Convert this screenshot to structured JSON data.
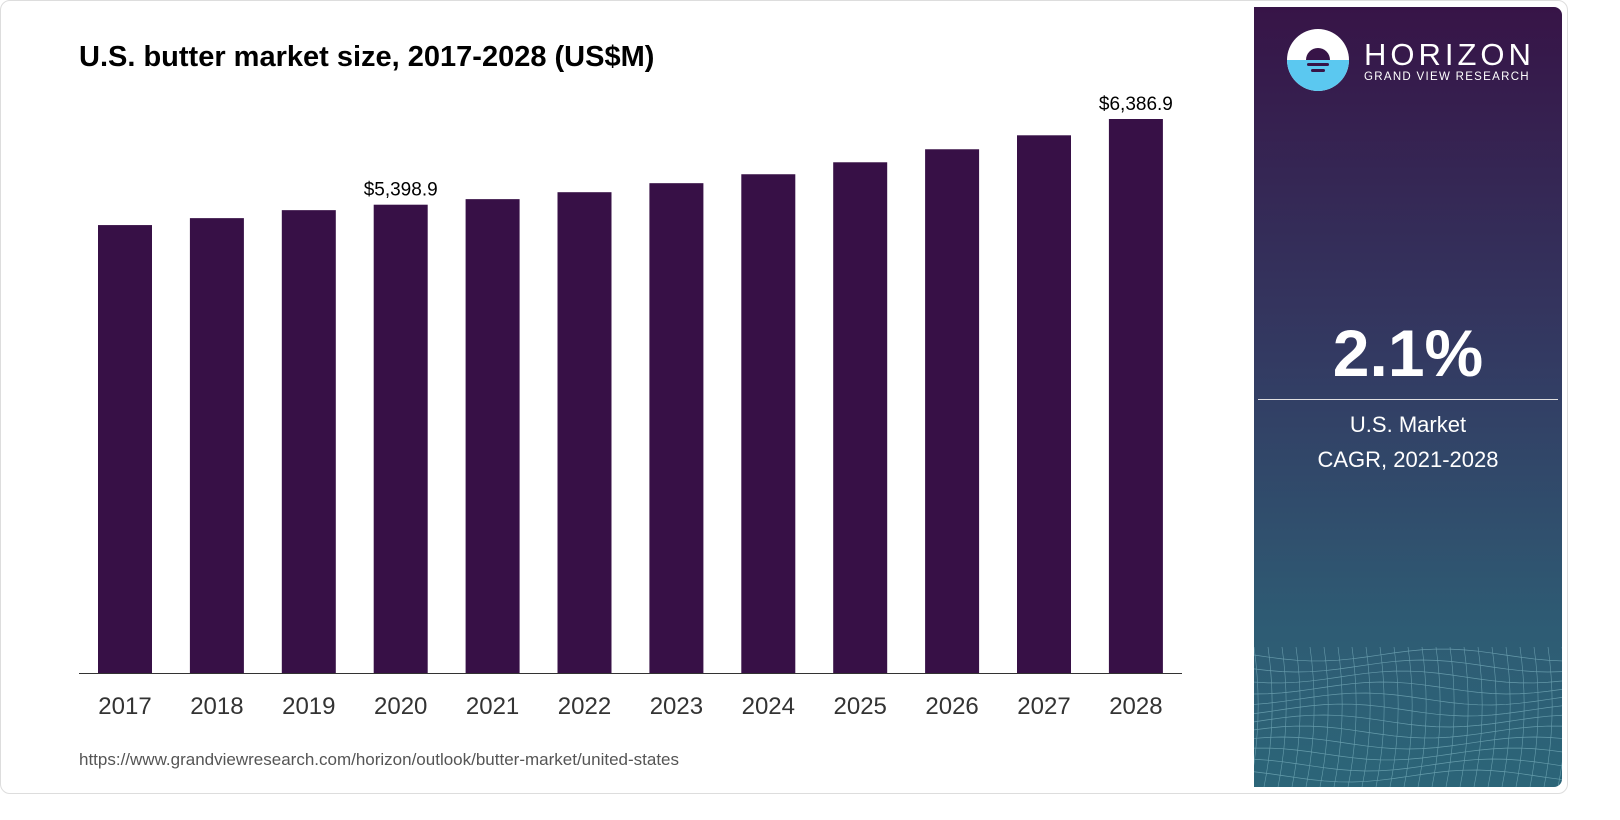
{
  "chart_data": {
    "type": "bar",
    "title": "U.S. butter market size, 2017-2028 (US$M)",
    "categories": [
      "2017",
      "2018",
      "2019",
      "2020",
      "2021",
      "2022",
      "2023",
      "2024",
      "2025",
      "2026",
      "2027",
      "2028"
    ],
    "values": [
      5164,
      5244,
      5336,
      5398.9,
      5463,
      5543,
      5647,
      5750,
      5888,
      6038,
      6199,
      6386.9
    ],
    "data_labels": {
      "2020": "$5,398.9",
      "2028": "$6,386.9"
    },
    "xlabel": "",
    "ylabel": "",
    "ylim": [
      0,
      6386.9
    ],
    "bar_color": "#371046",
    "grid": false
  },
  "source": "https://www.grandviewresearch.com/horizon/outlook/butter-market/united-states",
  "side": {
    "brand": "HORIZON",
    "brand_sub": "GRAND VIEW RESEARCH",
    "cagr": "2.1%",
    "label_line1": "U.S. Market",
    "label_line2": "CAGR, 2021-2028"
  }
}
